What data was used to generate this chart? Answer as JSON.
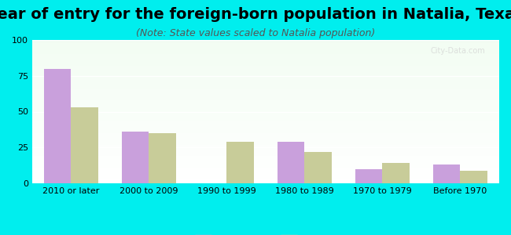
{
  "title": "Year of entry for the foreign-born population in Natalia, Texas",
  "subtitle": "(Note: State values scaled to Natalia population)",
  "categories": [
    "2010 or later",
    "2000 to 2009",
    "1990 to 1999",
    "1980 to 1989",
    "1970 to 1979",
    "Before 1970"
  ],
  "natalia_values": [
    80,
    36,
    0,
    29,
    10,
    13
  ],
  "texas_values": [
    53,
    35,
    29,
    22,
    14,
    9
  ],
  "natalia_color": "#c9a0dc",
  "texas_color": "#c8cc99",
  "bg_color": "#00eeee",
  "chart_bg_top": "#f0fff0",
  "chart_bg_bottom": "#e8f8f0",
  "ylim": [
    0,
    100
  ],
  "yticks": [
    0,
    25,
    50,
    75,
    100
  ],
  "bar_width": 0.35,
  "title_fontsize": 14,
  "subtitle_fontsize": 9,
  "tick_fontsize": 8,
  "legend_fontsize": 10
}
